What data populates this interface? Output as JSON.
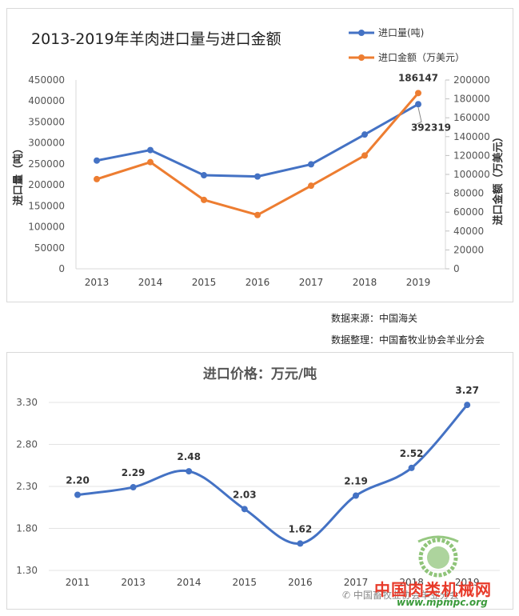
{
  "chart_data": [
    {
      "type": "line",
      "title": "2013-2019年羊肉进口量与进口金额",
      "categories": [
        "2013",
        "2014",
        "2015",
        "2016",
        "2017",
        "2018",
        "2019"
      ],
      "ylabel": "进口量（吨）",
      "y2label": "进口金额（万美元）",
      "ylim": [
        0,
        450000
      ],
      "y2lim": [
        0,
        200000
      ],
      "yticks": [
        "0",
        "50000",
        "100000",
        "150000",
        "200000",
        "250000",
        "300000",
        "350000",
        "400000",
        "450000"
      ],
      "y2ticks": [
        "0",
        "20000",
        "40000",
        "60000",
        "80000",
        "100000",
        "120000",
        "140000",
        "160000",
        "180000",
        "200000"
      ],
      "grid": false,
      "legend": "top-right",
      "series": [
        {
          "name": "进口量(吨)",
          "axis": "left",
          "color": "#4472c4",
          "values": [
            258000,
            283000,
            223000,
            220000,
            249000,
            320000,
            392319
          ]
        },
        {
          "name": "进口金额（万美元）",
          "axis": "right",
          "color": "#ed7d31",
          "values": [
            95000,
            113000,
            73000,
            57000,
            88000,
            120000,
            186147
          ]
        }
      ],
      "annotations": [
        {
          "series": 0,
          "index": 6,
          "text": "392319"
        },
        {
          "series": 1,
          "index": 6,
          "text": "186147"
        }
      ]
    },
    {
      "type": "line",
      "title": "进口价格：万元/吨",
      "categories": [
        "2011",
        "2013",
        "2014",
        "2015",
        "2016",
        "2017",
        "2018",
        "2019"
      ],
      "ylim": [
        1.3,
        3.3
      ],
      "yticks": [
        "1.30",
        "1.80",
        "2.30",
        "2.80",
        "3.30"
      ],
      "grid": true,
      "smooth": true,
      "series": [
        {
          "name": "",
          "color": "#4472c4",
          "values": [
            2.2,
            2.29,
            2.48,
            2.03,
            1.62,
            2.19,
            2.52,
            3.27
          ],
          "labels": [
            "2.20",
            "2.29",
            "2.48",
            "2.03",
            "1.62",
            "2.19",
            "2.52",
            "3.27"
          ]
        }
      ]
    }
  ],
  "notes": {
    "source": "数据来源：中国海关",
    "compiler": "数据整理：中国畜牧业协会羊业分会"
  },
  "watermark": {
    "brand": "中国肉类机械网",
    "url": "www.mpmpc.org",
    "wechat": "中国畜牧业协会羊业分会"
  },
  "colors": {
    "blue": "#4472c4",
    "orange": "#ed7d31"
  }
}
